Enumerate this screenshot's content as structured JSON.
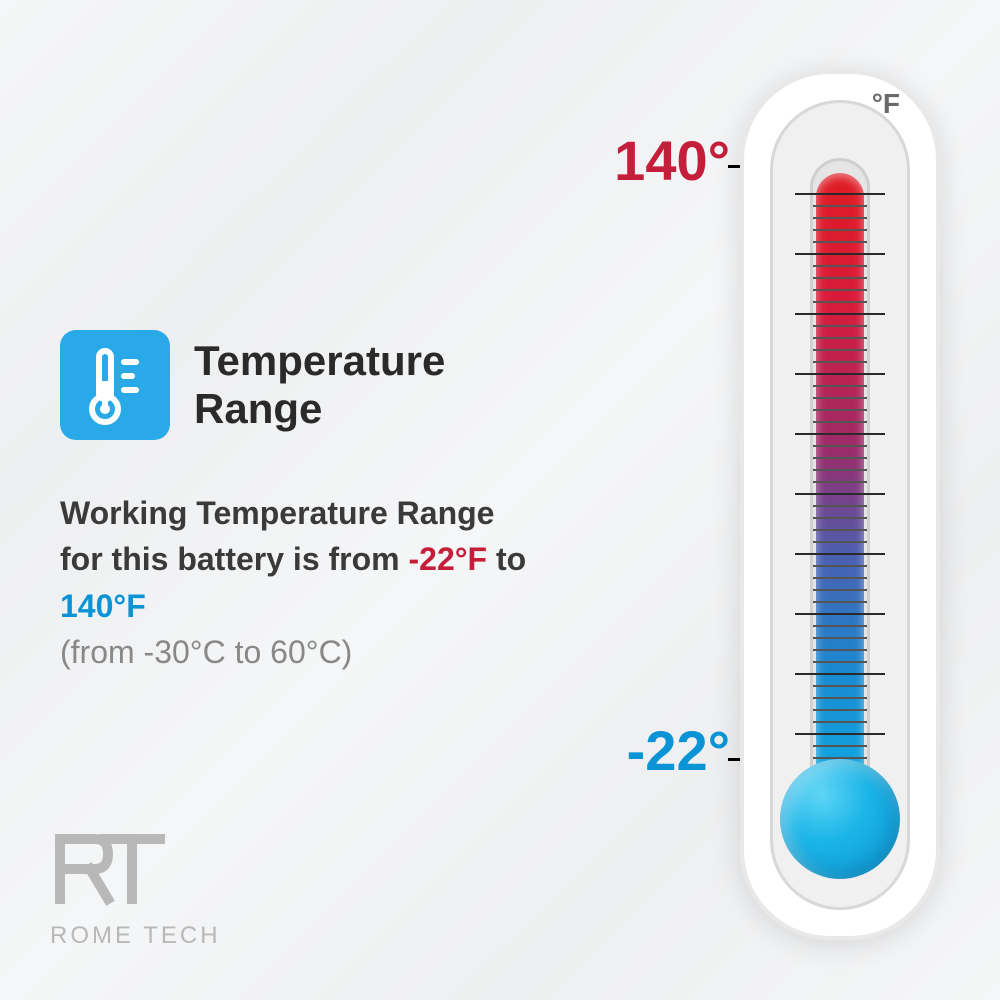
{
  "infographic_type": "infographic",
  "background_color": "#f2f3f4",
  "title": {
    "line1": "Temperature",
    "line2": "Range",
    "color": "#2a2a2a",
    "fontsize": 42
  },
  "icon": {
    "name": "thermometer-icon",
    "bg_color": "#29a9e8",
    "fg_color": "#ffffff",
    "radius": 16
  },
  "description": {
    "prefix": "Working Temperature Range for this battery is from ",
    "low_f": "-22°F",
    "mid": " to ",
    "high_f": "140°F",
    "celsius": "(from -30°C to 60°C)",
    "text_color": "#3a3a3a",
    "low_color": "#c41e3a",
    "high_color": "#0a94d6",
    "celsius_color": "#888888",
    "fontsize": 32
  },
  "thermometer": {
    "unit": "°F",
    "unit_color": "#6a6a6a",
    "body_color": "#ffffff",
    "inner_color": "#f0f0f0",
    "tube_bg": "#e5e5e5",
    "gradient_top": "#e01b24",
    "gradient_bottom": "#0cb5e8",
    "bulb_colors": [
      "#5dd5f5",
      "#1bb5e8",
      "#0a94d6"
    ],
    "tick_color": "#2a2a2a",
    "tick_major_count": 10,
    "tick_minor_per_major": 5,
    "high_label": "140°",
    "high_label_color": "#c41e3a",
    "low_label": "-22°",
    "low_label_color": "#0a94d6",
    "line_color": "#000000"
  },
  "logo": {
    "brand": "ROME TECH",
    "color": "#b8b8b8"
  }
}
